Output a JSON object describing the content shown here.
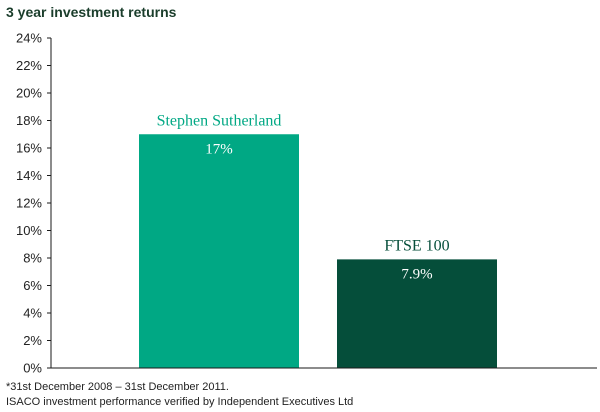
{
  "chart_data": {
    "type": "bar",
    "title": "3 year investment returns",
    "categories": [
      "Stephen Sutherland",
      "FTSE 100"
    ],
    "values": [
      17,
      7.9
    ],
    "value_labels": [
      "17%",
      "7.9%"
    ],
    "ylim": [
      0,
      24
    ],
    "yticks": [
      0,
      2,
      4,
      6,
      8,
      10,
      12,
      14,
      16,
      18,
      20,
      22,
      24
    ],
    "ytick_labels": [
      "0%",
      "2%",
      "4%",
      "6%",
      "8%",
      "10%",
      "12%",
      "14%",
      "16%",
      "18%",
      "20%",
      "22%",
      "24%"
    ],
    "grid": false,
    "colors": [
      "#00a884",
      "#054e3a"
    ],
    "label_colors": [
      "#00a884",
      "#054e3a"
    ]
  },
  "footnotes": [
    "*31st December 2008 – 31st December 2011.",
    "ISACO investment performance verified by Independent Executives Ltd"
  ]
}
